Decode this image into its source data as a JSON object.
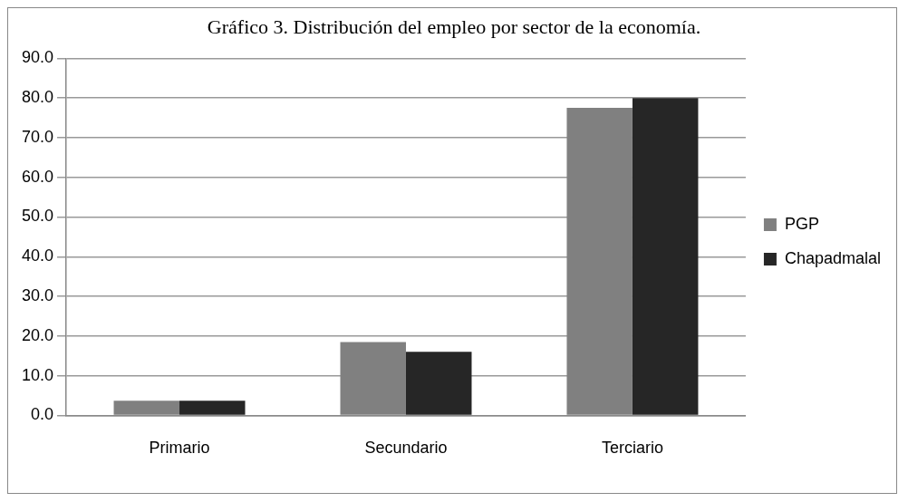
{
  "chart_data": {
    "type": "bar",
    "title": "Gráfico 3. Distribución del empleo por sector de la economía.",
    "categories": [
      "Primario",
      "Secundario",
      "Terciario"
    ],
    "series": [
      {
        "name": "PGP",
        "color": "#808080",
        "values": [
          3.7,
          18.5,
          77.5
        ]
      },
      {
        "name": "Chapadmalal",
        "color": "#262626",
        "values": [
          3.7,
          16.0,
          80.0
        ]
      }
    ],
    "ylim": [
      0,
      90
    ],
    "yticks": [
      {
        "value": 0,
        "label": "0.0"
      },
      {
        "value": 10,
        "label": "10.0"
      },
      {
        "value": 20,
        "label": "20.0"
      },
      {
        "value": 30,
        "label": "30.0"
      },
      {
        "value": 40,
        "label": "40.0"
      },
      {
        "value": 50,
        "label": "50.0"
      },
      {
        "value": 60,
        "label": "60.0"
      },
      {
        "value": 70,
        "label": "70.0"
      },
      {
        "value": 80,
        "label": "80.0"
      },
      {
        "value": 90,
        "label": "90.0"
      }
    ],
    "grid": "y",
    "legend": "right"
  }
}
